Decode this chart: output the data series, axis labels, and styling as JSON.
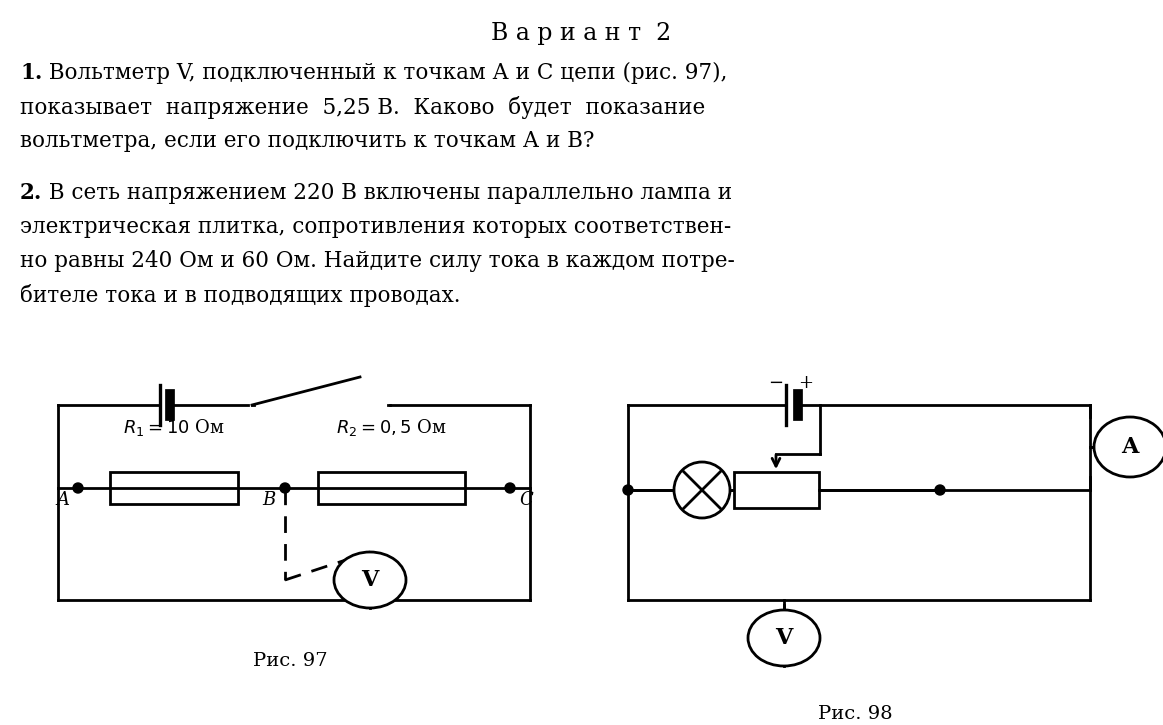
{
  "title": "В а р и а н т  2",
  "bg_color": "#ffffff",
  "text_color": "#000000",
  "line_color": "#000000",
  "line_width": 2.0,
  "fig_width": 11.63,
  "fig_height": 7.25,
  "p1_bold": "1.",
  "p1_line1": " Вольтметр V, подключенный к точкам А и С цепи (рис. 97),",
  "p1_line2": "показывает  напряжение  5,25 В.  Каково  будет  показание",
  "p1_line3": "вольтметра, если его подключить к точкам А и В?",
  "p2_bold": "2.",
  "p2_line1": " В сеть напряжением 220 В включены параллельно лампа и",
  "p2_line2": "электрическая плитка, сопротивления которых соответствен-",
  "p2_line3": "но равны 240 Ом и 60 Ом. Найдите силу тока в каждом потре-",
  "p2_line4": "бителе тока и в подводящих проводах.",
  "caption97": "Рис. 97",
  "caption98": "Рис. 98",
  "r1_label": "$R_1 = 10$ Ом",
  "r2_label": "$R_2 = 0,5$ Ом"
}
